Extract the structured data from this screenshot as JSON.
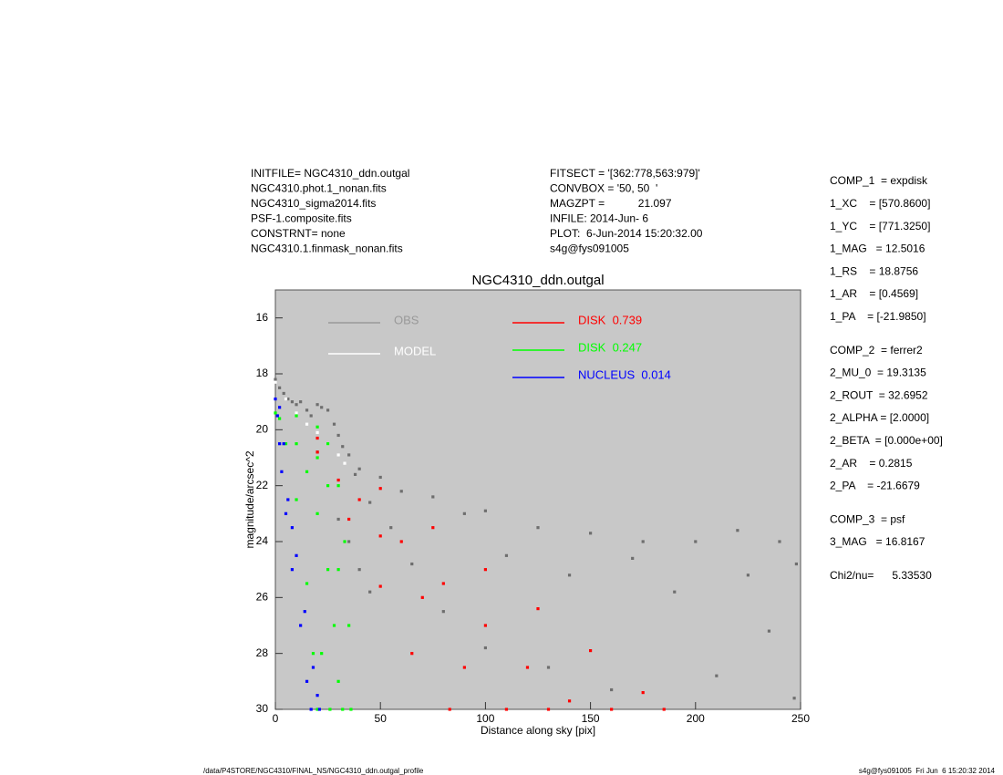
{
  "header": {
    "left": [
      "INITFILE= NGC4310_ddn.outgal",
      "NGC4310.phot.1_nonan.fits",
      "NGC4310_sigma2014.fits",
      "PSF-1.composite.fits",
      "CONSTRNT= none",
      "NGC4310.1.finmask_nonan.fits"
    ],
    "middle": [
      "FITSECT = '[362:778,563:979]'",
      "CONVBOX = '50, 50  '",
      "MAGZPT =           21.097",
      "INFILE: 2014-Jun- 6",
      "PLOT:  6-Jun-2014 15:20:32.00",
      "s4g@fys091005"
    ],
    "params": [
      [
        "COMP_1  = expdisk",
        "1_XC    = [570.8600]",
        "1_YC    = [771.3250]",
        "1_MAG   = 12.5016",
        "1_RS    = 18.8756",
        "1_AR    = [0.4569]",
        "1_PA    = [-21.9850]"
      ],
      [
        "COMP_2  = ferrer2",
        "2_MU_0  = 19.3135",
        "2_ROUT  = 32.6952",
        "2_ALPHA = [2.0000]",
        "2_BETA  = [0.000e+00]",
        "2_AR    = 0.2815",
        "2_PA    = -21.6679"
      ],
      [
        "COMP_3  = psf",
        "3_MAG   = 16.8167"
      ],
      [
        "Chi2/nu=      5.33530"
      ]
    ]
  },
  "footer": {
    "left": "/data/P4STORE/NGC4310/FINAL_NS/NGC4310_ddn.outgal_profile",
    "right": "s4g@fys091005  Fri Jun  6 15:20:32 2014"
  },
  "chart_data": {
    "type": "scatter",
    "title": "NGC4310_ddn.outgal",
    "xlabel": "Distance along sky [pix]",
    "ylabel": "magnitude/arcsec^2",
    "xlim": [
      0,
      250
    ],
    "ylim": [
      15,
      30
    ],
    "y_reversed": true,
    "xticks": [
      0,
      50,
      100,
      150,
      200,
      250
    ],
    "yticks": [
      16,
      18,
      20,
      22,
      24,
      26,
      28,
      30
    ],
    "series": [
      {
        "name": "OBS",
        "color": "#6e6e6e",
        "x": [
          0,
          2,
          4,
          6,
          8,
          10,
          12,
          15,
          17,
          20,
          22,
          25,
          28,
          30,
          32,
          35,
          38,
          40,
          45,
          50,
          55,
          60,
          65,
          75,
          80,
          90,
          100,
          100,
          110,
          125,
          130,
          140,
          150,
          160,
          170,
          175,
          190,
          200,
          210,
          220,
          225,
          235,
          240,
          248,
          247,
          20,
          30,
          35,
          40,
          45
        ],
        "values": [
          18.2,
          18.5,
          18.7,
          18.9,
          19.0,
          19.1,
          19.0,
          19.3,
          19.5,
          19.1,
          19.2,
          19.3,
          19.8,
          20.2,
          20.6,
          20.9,
          21.6,
          21.4,
          22.6,
          21.7,
          23.5,
          22.2,
          24.8,
          22.4,
          26.5,
          23.0,
          22.9,
          27.8,
          24.5,
          23.5,
          28.5,
          25.2,
          23.7,
          29.3,
          24.6,
          24.0,
          25.8,
          24.0,
          28.8,
          23.6,
          25.2,
          27.2,
          24.0,
          24.8,
          29.6,
          20.8,
          23.2,
          24.0,
          25.0,
          25.8
        ]
      },
      {
        "name": "MODEL",
        "color": "#ffffff",
        "x": [
          0,
          5,
          10,
          15,
          20,
          25,
          30,
          33
        ],
        "values": [
          18.3,
          18.9,
          19.4,
          19.8,
          20.1,
          20.5,
          20.9,
          21.2
        ]
      },
      {
        "name": "DISK  0.739",
        "color": "#ff0000",
        "x": [
          20,
          50,
          75,
          100,
          125,
          150,
          175,
          185,
          20,
          35,
          50,
          65,
          83,
          40,
          60,
          80,
          100,
          120,
          140,
          50,
          70,
          90,
          110,
          130,
          160,
          30
        ],
        "values": [
          20.3,
          22.1,
          23.5,
          25.0,
          26.4,
          27.9,
          29.4,
          30,
          20.8,
          23.2,
          25.6,
          28,
          30,
          22.5,
          24,
          25.5,
          27,
          28.5,
          29.7,
          23.8,
          26,
          28.5,
          30,
          30,
          30,
          21.8
        ]
      },
      {
        "name": "DISK  0.247",
        "color": "#00ff00",
        "x": [
          0,
          10,
          20,
          25,
          30,
          33,
          35,
          36,
          2,
          5,
          10,
          15,
          18,
          20,
          10,
          15,
          20,
          25,
          28,
          30,
          25,
          20,
          30,
          32,
          26,
          22
        ],
        "values": [
          19.4,
          19.5,
          19.9,
          20.5,
          22,
          24,
          27,
          30,
          19.6,
          20.5,
          22.5,
          25.5,
          28,
          30,
          20.5,
          21.5,
          23,
          25,
          27,
          29,
          22,
          21,
          25,
          30,
          30,
          28
        ]
      },
      {
        "name": "NUCLEUS  0.014",
        "color": "#0000ff",
        "x": [
          0,
          1,
          2,
          3,
          5,
          8,
          12,
          15,
          17,
          4,
          6,
          10,
          14,
          18,
          21,
          2,
          8,
          20
        ],
        "values": [
          18.9,
          19.5,
          20.5,
          21.5,
          23,
          25,
          27,
          29,
          30,
          20.5,
          22.5,
          24.5,
          26.5,
          28.5,
          30,
          19.2,
          23.5,
          29.5
        ]
      }
    ]
  }
}
